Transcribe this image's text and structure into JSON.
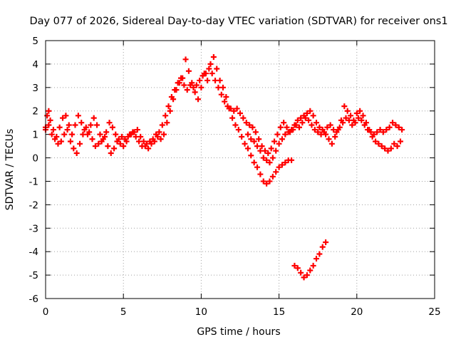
{
  "chart_data": {
    "type": "scatter",
    "title": "Day 077 of 2026, Sidereal Day-to-day VTEC variation (SDTVAR) for receiver ons1",
    "xlabel": "GPS time / hours",
    "ylabel": "SDTVAR / TECUs",
    "xlim": [
      0,
      25
    ],
    "ylim": [
      -6,
      5
    ],
    "x_ticks": [
      0,
      5,
      10,
      15,
      20,
      25
    ],
    "y_ticks": [
      -6,
      -5,
      -4,
      -3,
      -2,
      -1,
      0,
      1,
      2,
      3,
      4,
      5
    ],
    "grid": true,
    "marker": "+",
    "series": [
      {
        "name": "SDTVAR",
        "color": "#ff0000",
        "segments": [
          [
            [
              0.0,
              1.3
            ],
            [
              0.1,
              1.8
            ],
            [
              0.2,
              2.0
            ],
            [
              0.3,
              1.6
            ],
            [
              0.5,
              1.2
            ],
            [
              0.7,
              0.9
            ],
            [
              0.9,
              1.3
            ],
            [
              1.1,
              1.7
            ],
            [
              1.3,
              1.8
            ],
            [
              1.5,
              1.4
            ],
            [
              1.7,
              1.0
            ],
            [
              1.9,
              1.4
            ],
            [
              2.1,
              1.8
            ],
            [
              2.3,
              1.5
            ],
            [
              2.5,
              1.2
            ],
            [
              2.7,
              1.0
            ],
            [
              2.9,
              1.4
            ],
            [
              3.1,
              1.7
            ],
            [
              3.3,
              1.4
            ],
            [
              3.5,
              1.0
            ],
            [
              3.7,
              0.8
            ],
            [
              3.9,
              1.1
            ],
            [
              4.1,
              1.5
            ],
            [
              4.3,
              1.3
            ],
            [
              4.5,
              1.0
            ],
            [
              4.7,
              0.8
            ],
            [
              4.9,
              0.9
            ],
            [
              5.1,
              0.8
            ],
            [
              5.3,
              0.9
            ],
            [
              5.5,
              1.0
            ],
            [
              5.7,
              1.1
            ],
            [
              5.9,
              1.2
            ],
            [
              6.1,
              0.9
            ],
            [
              6.3,
              0.7
            ],
            [
              6.5,
              0.6
            ],
            [
              6.7,
              0.7
            ],
            [
              6.9,
              0.8
            ],
            [
              7.1,
              1.0
            ],
            [
              7.3,
              1.1
            ],
            [
              7.5,
              1.4
            ],
            [
              7.7,
              1.8
            ],
            [
              7.9,
              2.2
            ],
            [
              8.1,
              2.6
            ],
            [
              8.3,
              2.9
            ],
            [
              8.5,
              3.2
            ],
            [
              8.7,
              3.4
            ],
            [
              8.9,
              3.1
            ],
            [
              9.1,
              2.9
            ],
            [
              9.3,
              3.1
            ],
            [
              9.5,
              3.0
            ],
            [
              9.7,
              3.1
            ],
            [
              9.9,
              3.3
            ],
            [
              10.1,
              3.5
            ],
            [
              10.3,
              3.6
            ],
            [
              10.5,
              3.8
            ],
            [
              10.7,
              3.6
            ],
            [
              10.9,
              3.3
            ],
            [
              11.1,
              3.0
            ],
            [
              11.3,
              2.7
            ],
            [
              11.5,
              2.4
            ],
            [
              11.7,
              2.2
            ],
            [
              11.9,
              2.1
            ],
            [
              12.1,
              2.0
            ],
            [
              12.3,
              2.1
            ],
            [
              12.5,
              1.9
            ],
            [
              12.7,
              1.7
            ],
            [
              12.9,
              1.5
            ],
            [
              13.1,
              1.4
            ],
            [
              13.3,
              1.3
            ],
            [
              13.5,
              1.1
            ],
            [
              13.7,
              0.8
            ],
            [
              13.9,
              0.5
            ],
            [
              14.1,
              0.3
            ],
            [
              14.3,
              0.2
            ],
            [
              14.5,
              0.4
            ],
            [
              14.7,
              0.7
            ],
            [
              14.9,
              1.0
            ],
            [
              15.1,
              1.3
            ],
            [
              15.3,
              1.5
            ],
            [
              15.5,
              1.3
            ],
            [
              15.7,
              1.1
            ],
            [
              15.9,
              1.2
            ],
            [
              16.1,
              1.4
            ],
            [
              16.3,
              1.3
            ],
            [
              16.5,
              1.5
            ],
            [
              16.7,
              1.7
            ],
            [
              16.9,
              1.6
            ],
            [
              17.1,
              1.4
            ],
            [
              17.3,
              1.2
            ],
            [
              17.5,
              1.1
            ],
            [
              17.7,
              1.0
            ],
            [
              17.9,
              1.1
            ],
            [
              18.1,
              1.3
            ],
            [
              18.3,
              1.4
            ],
            [
              18.5,
              1.2
            ],
            [
              18.7,
              1.1
            ],
            [
              18.9,
              1.3
            ],
            [
              19.1,
              1.5
            ],
            [
              19.3,
              1.7
            ],
            [
              19.5,
              1.6
            ],
            [
              19.7,
              1.4
            ],
            [
              19.9,
              1.5
            ],
            [
              20.1,
              1.7
            ],
            [
              20.3,
              1.6
            ],
            [
              20.5,
              1.4
            ],
            [
              20.7,
              1.2
            ],
            [
              20.9,
              1.1
            ],
            [
              21.1,
              1.0
            ],
            [
              21.3,
              1.1
            ],
            [
              21.5,
              1.2
            ],
            [
              21.7,
              1.1
            ],
            [
              21.9,
              1.2
            ],
            [
              22.1,
              1.3
            ],
            [
              22.3,
              1.5
            ],
            [
              22.5,
              1.4
            ],
            [
              22.7,
              1.3
            ],
            [
              22.9,
              1.2
            ]
          ],
          [
            [
              0.0,
              1.2
            ],
            [
              0.2,
              1.4
            ],
            [
              0.4,
              1.0
            ],
            [
              0.6,
              0.8
            ],
            [
              0.8,
              0.6
            ],
            [
              1.0,
              0.7
            ],
            [
              1.2,
              1.0
            ],
            [
              1.4,
              1.2
            ],
            [
              1.6,
              0.7
            ],
            [
              1.8,
              0.4
            ],
            [
              2.0,
              0.2
            ],
            [
              2.2,
              0.6
            ],
            [
              2.4,
              1.0
            ],
            [
              2.6,
              1.3
            ],
            [
              2.8,
              1.1
            ],
            [
              3.0,
              0.8
            ],
            [
              3.2,
              0.5
            ],
            [
              3.4,
              0.6
            ],
            [
              3.6,
              0.7
            ],
            [
              3.8,
              0.9
            ],
            [
              4.0,
              0.5
            ],
            [
              4.2,
              0.2
            ],
            [
              4.4,
              0.4
            ],
            [
              4.6,
              0.7
            ],
            [
              4.8,
              0.6
            ],
            [
              5.0,
              0.5
            ],
            [
              5.2,
              0.7
            ],
            [
              5.4,
              1.0
            ],
            [
              5.6,
              1.1
            ],
            [
              5.8,
              0.9
            ],
            [
              6.0,
              0.7
            ],
            [
              6.2,
              0.5
            ],
            [
              6.4,
              0.5
            ],
            [
              6.6,
              0.4
            ],
            [
              6.8,
              0.6
            ],
            [
              7.0,
              0.7
            ],
            [
              7.2,
              0.9
            ],
            [
              7.4,
              0.8
            ],
            [
              7.6,
              1.0
            ],
            [
              7.8,
              1.5
            ],
            [
              8.0,
              2.0
            ],
            [
              8.2,
              2.5
            ],
            [
              8.4,
              2.9
            ],
            [
              8.6,
              3.2
            ],
            [
              8.8,
              3.4
            ],
            [
              9.0,
              4.2
            ],
            [
              9.2,
              3.7
            ],
            [
              9.4,
              3.2
            ],
            [
              9.6,
              2.8
            ],
            [
              9.8,
              2.5
            ],
            [
              10.0,
              3.0
            ],
            [
              10.2,
              3.6
            ],
            [
              10.4,
              3.3
            ],
            [
              10.6,
              4.0
            ],
            [
              10.8,
              4.3
            ],
            [
              11.0,
              3.8
            ],
            [
              11.2,
              3.3
            ],
            [
              11.4,
              3.0
            ],
            [
              11.6,
              2.6
            ],
            [
              11.8,
              2.1
            ],
            [
              12.0,
              1.7
            ],
            [
              12.2,
              1.4
            ],
            [
              12.4,
              1.2
            ],
            [
              12.6,
              0.9
            ],
            [
              12.8,
              0.6
            ],
            [
              13.0,
              0.4
            ],
            [
              13.2,
              0.1
            ],
            [
              13.4,
              -0.2
            ],
            [
              13.6,
              -0.4
            ],
            [
              13.8,
              -0.7
            ],
            [
              14.0,
              -1.0
            ],
            [
              14.2,
              -1.1
            ],
            [
              14.4,
              -1.0
            ],
            [
              14.6,
              -0.8
            ],
            [
              14.8,
              -0.6
            ],
            [
              15.0,
              -0.4
            ],
            [
              15.2,
              -0.3
            ],
            [
              15.4,
              -0.2
            ],
            [
              15.6,
              -0.1
            ],
            [
              15.8,
              -0.1
            ]
          ],
          [
            [
              13.0,
              1.0
            ],
            [
              13.2,
              0.8
            ],
            [
              13.4,
              0.7
            ],
            [
              13.6,
              0.5
            ],
            [
              13.8,
              0.3
            ],
            [
              14.0,
              0.0
            ],
            [
              14.2,
              -0.1
            ],
            [
              14.4,
              -0.2
            ],
            [
              14.6,
              0.0
            ],
            [
              14.8,
              0.3
            ],
            [
              15.0,
              0.6
            ],
            [
              15.2,
              0.8
            ],
            [
              15.4,
              1.0
            ],
            [
              15.6,
              1.1
            ],
            [
              15.8,
              1.2
            ],
            [
              16.0,
              1.4
            ],
            [
              16.2,
              1.6
            ],
            [
              16.4,
              1.7
            ],
            [
              16.6,
              1.8
            ],
            [
              16.8,
              1.9
            ],
            [
              17.0,
              2.0
            ],
            [
              17.2,
              1.8
            ],
            [
              17.4,
              1.5
            ],
            [
              17.6,
              1.3
            ],
            [
              17.8,
              1.2
            ],
            [
              18.0,
              1.0
            ],
            [
              18.2,
              0.8
            ],
            [
              18.4,
              0.6
            ],
            [
              18.6,
              0.9
            ],
            [
              18.8,
              1.2
            ],
            [
              19.0,
              1.6
            ],
            [
              19.2,
              2.2
            ],
            [
              19.4,
              2.0
            ],
            [
              19.6,
              1.8
            ],
            [
              19.8,
              1.6
            ],
            [
              20.0,
              1.9
            ],
            [
              20.2,
              2.0
            ],
            [
              20.4,
              1.8
            ],
            [
              20.6,
              1.5
            ],
            [
              20.8,
              1.2
            ],
            [
              21.0,
              0.9
            ],
            [
              21.2,
              0.7
            ],
            [
              21.4,
              0.6
            ],
            [
              21.6,
              0.5
            ],
            [
              21.8,
              0.4
            ],
            [
              22.0,
              0.3
            ],
            [
              22.2,
              0.4
            ],
            [
              22.4,
              0.6
            ],
            [
              22.6,
              0.5
            ],
            [
              22.8,
              0.7
            ]
          ],
          [
            [
              16.0,
              -4.6
            ],
            [
              16.2,
              -4.7
            ],
            [
              16.4,
              -4.9
            ],
            [
              16.6,
              -5.1
            ],
            [
              16.8,
              -5.0
            ],
            [
              17.0,
              -4.8
            ],
            [
              17.2,
              -4.6
            ],
            [
              17.4,
              -4.3
            ],
            [
              17.6,
              -4.1
            ],
            [
              17.8,
              -3.8
            ],
            [
              18.0,
              -3.6
            ]
          ]
        ]
      }
    ]
  }
}
